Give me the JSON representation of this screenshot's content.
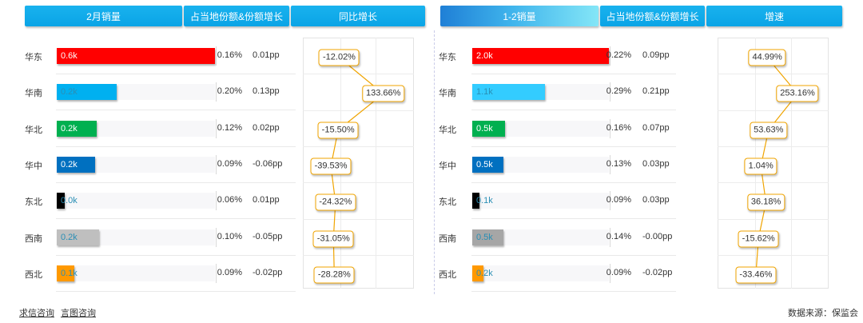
{
  "headers": {
    "left_sales": "2月销量",
    "left_share": "占当地份额&份额增长",
    "left_growth": "同比增长",
    "right_sales": "1-2销量",
    "right_share": "占当地份额&份额增长",
    "right_growth": "增速"
  },
  "footer": {
    "link1": "求信咨询",
    "link2": "言图咨询",
    "source": "数据来源：保监会"
  },
  "colors": {
    "header_blue": "#0ea8e8",
    "growth_line": "#f0a400"
  },
  "chart_data": [
    {
      "type": "bar",
      "title": "2月销量",
      "categories": [
        "华东",
        "华南",
        "华北",
        "华中",
        "东北",
        "西南",
        "西北"
      ],
      "values": [
        0.6,
        0.2,
        0.2,
        0.2,
        0.0,
        0.2,
        0.1
      ],
      "value_labels": [
        "0.6k",
        "0.2k",
        "0.2k",
        "0.2k",
        "0.0k",
        "0.2k",
        "0.1k"
      ],
      "bar_colors": [
        "#ff0000",
        "#00b0f0",
        "#00b050",
        "#0070c0",
        "#000000",
        "#bfbfbf",
        "#ff9900"
      ],
      "label_colors": [
        "#ffffff",
        "#2a8fb5",
        "#ffffff",
        "#ffffff",
        "#2a8fb5",
        "#2a8fb5",
        "#2a8fb5"
      ],
      "bar_fraction": [
        1.0,
        0.38,
        0.25,
        0.24,
        0.05,
        0.27,
        0.11
      ],
      "share": [
        "0.16%",
        "0.20%",
        "0.12%",
        "0.09%",
        "0.06%",
        "0.10%",
        "0.09%"
      ],
      "share_change": [
        "0.01pp",
        "0.13pp",
        "0.02pp",
        "-0.06pp",
        "0.01pp",
        "-0.05pp",
        "-0.02pp"
      ],
      "growth_title": "同比增长",
      "growth_values": [
        -12.02,
        133.66,
        -15.5,
        -39.53,
        -24.32,
        -31.05,
        -28.28
      ],
      "growth_labels": [
        "-12.02%",
        "133.66%",
        "-15.50%",
        "-39.53%",
        "-24.32%",
        "-31.05%",
        "-28.28%"
      ],
      "growth_range": [
        -45,
        145
      ]
    },
    {
      "type": "bar",
      "title": "1-2销量",
      "categories": [
        "华东",
        "华南",
        "华北",
        "华中",
        "东北",
        "西南",
        "西北"
      ],
      "values": [
        2.0,
        1.1,
        0.5,
        0.5,
        0.1,
        0.5,
        0.2
      ],
      "value_labels": [
        "2.0k",
        "1.1k",
        "0.5k",
        "0.5k",
        "0.1k",
        "0.5k",
        "0.2k"
      ],
      "bar_colors": [
        "#ff0000",
        "#33ccff",
        "#00b050",
        "#0070c0",
        "#000000",
        "#a6a6a6",
        "#ff9900"
      ],
      "label_colors": [
        "#ffffff",
        "#2a8fb5",
        "#ffffff",
        "#ffffff",
        "#2a8fb5",
        "#2a8fb5",
        "#2a8fb5"
      ],
      "bar_fraction": [
        1.0,
        0.53,
        0.24,
        0.23,
        0.05,
        0.23,
        0.08
      ],
      "share": [
        "0.22%",
        "0.29%",
        "0.16%",
        "0.13%",
        "0.09%",
        "0.14%",
        "0.09%"
      ],
      "share_change": [
        "0.09pp",
        "0.21pp",
        "0.07pp",
        "0.03pp",
        "0.03pp",
        "-0.00pp",
        "-0.02pp"
      ],
      "growth_title": "增速",
      "growth_values": [
        44.99,
        253.16,
        53.63,
        1.04,
        36.18,
        -15.62,
        -33.46
      ],
      "growth_labels": [
        "44.99%",
        "253.16%",
        "53.63%",
        "1.04%",
        "36.18%",
        "-15.62%",
        "-33.46%"
      ],
      "growth_range": [
        -55,
        275
      ]
    }
  ]
}
